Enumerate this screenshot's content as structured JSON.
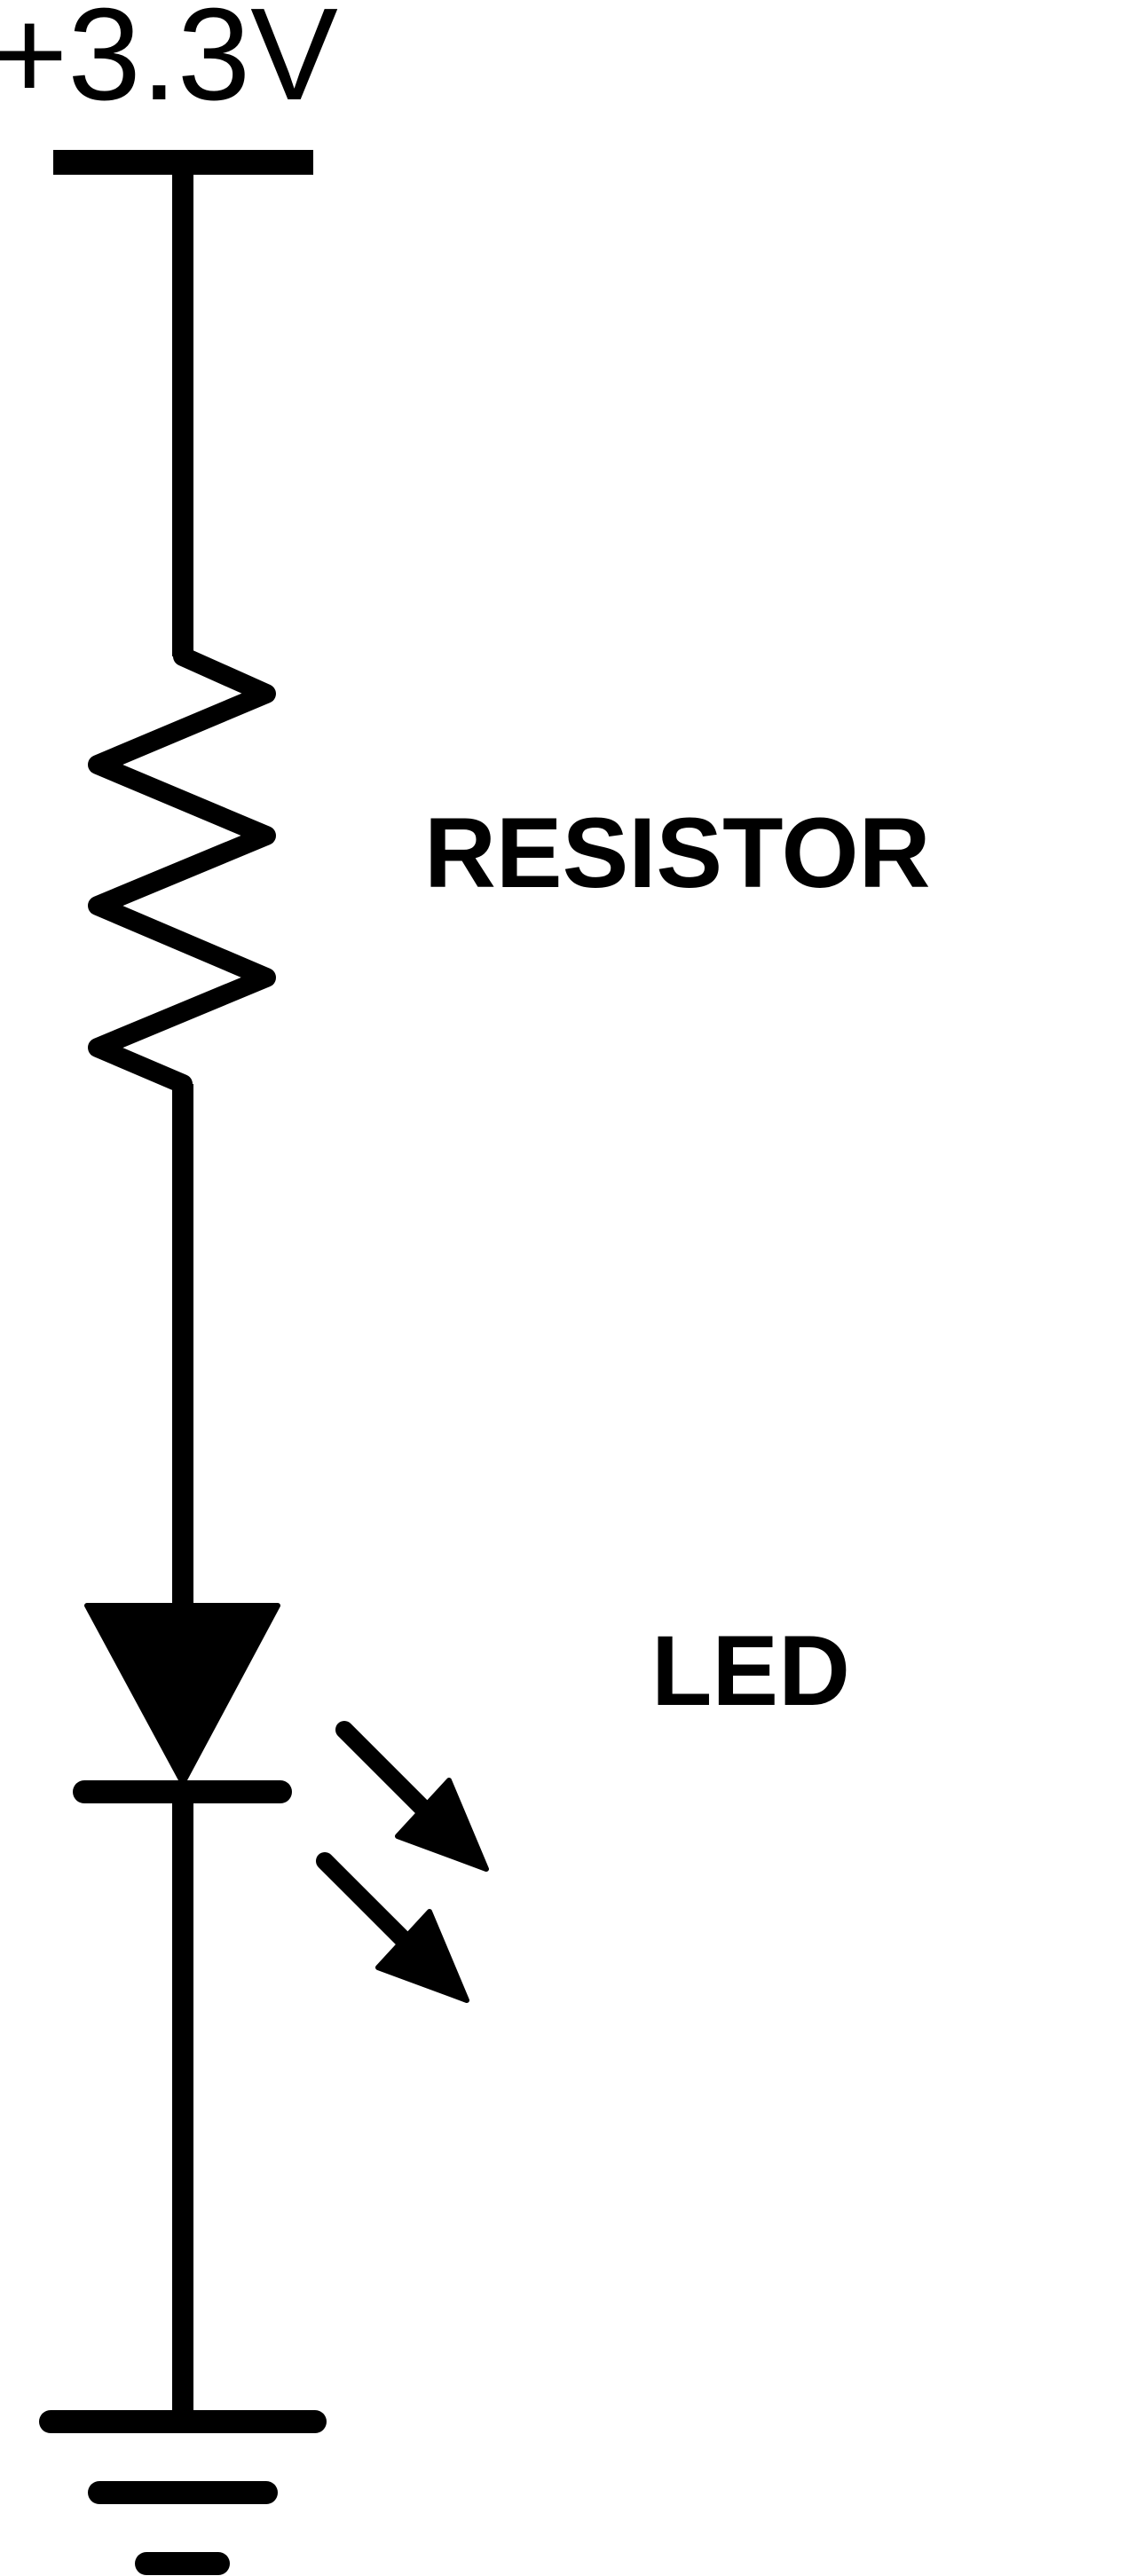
{
  "supply": {
    "label": "+3.3V"
  },
  "components": {
    "resistor": {
      "label": "RESISTOR"
    },
    "led": {
      "label": "LED"
    }
  },
  "colors": {
    "ink": "#000000",
    "background": "#ffffff"
  }
}
